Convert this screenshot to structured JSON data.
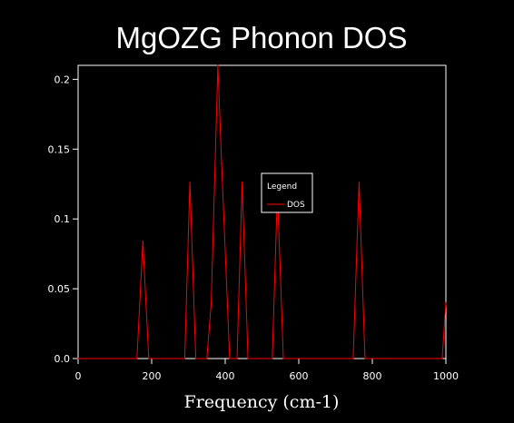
{
  "chart_data": {
    "type": "line",
    "title": "MgOZG Phonon DOS",
    "xlabel": "Frequency (cm-1)",
    "ylabel": "",
    "xlim": [
      0,
      1000
    ],
    "ylim": [
      0,
      0.21
    ],
    "x_ticks": [
      "0",
      "200",
      "400",
      "600",
      "800",
      "1000"
    ],
    "x_tick_values": [
      0,
      200,
      400,
      600,
      800,
      1000
    ],
    "y_ticks": [
      "0.0",
      "0.05",
      "0.1",
      "0.15",
      "0.2"
    ],
    "y_tick_values": [
      0,
      0.05,
      0.1,
      0.15,
      0.2
    ],
    "grid": false,
    "legend": {
      "title": "Legend",
      "placement": "center-right"
    },
    "series": [
      {
        "name": "DOS",
        "color": "#ff0000",
        "x": [
          0,
          160,
          176,
          192,
          290,
          304,
          320,
          350,
          362,
          380,
          390,
          412,
          432,
          446,
          462,
          528,
          542,
          558,
          748,
          764,
          780,
          990,
          1000
        ],
        "y": [
          0,
          0,
          0.084,
          0,
          0,
          0.126,
          0,
          0,
          0.04,
          0.21,
          0.14,
          0,
          0,
          0.126,
          0,
          0,
          0.12,
          0,
          0,
          0.126,
          0,
          0,
          0.04
        ]
      }
    ]
  }
}
